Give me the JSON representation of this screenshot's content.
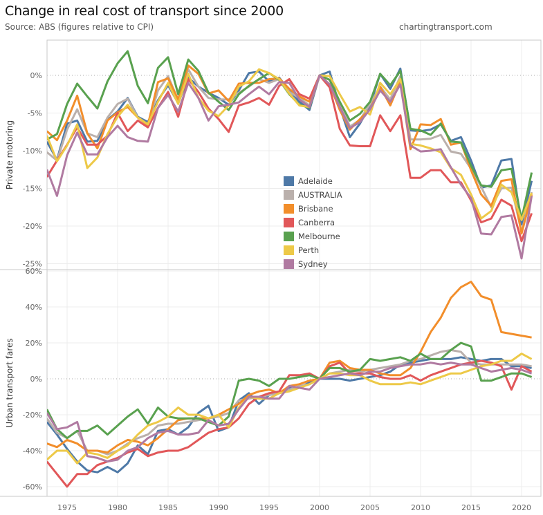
{
  "header": {
    "title": "Change in real cost of transport since 2000",
    "subtitle": "Source: ABS (figures relative to CPI)",
    "site": "chartingtransport.com"
  },
  "legend": [
    {
      "name": "Adelaide",
      "color": "#4e79a7"
    },
    {
      "name": "AUSTRALIA",
      "color": "#bab0ac"
    },
    {
      "name": "Brisbane",
      "color": "#f28e2b"
    },
    {
      "name": "Canberra",
      "color": "#e15759"
    },
    {
      "name": "Melbourne",
      "color": "#59a14f"
    },
    {
      "name": "Perth",
      "color": "#edc948"
    },
    {
      "name": "Sydney",
      "color": "#b07aa1"
    }
  ],
  "chart_data": [
    {
      "type": "line",
      "title": "Private motoring",
      "ylabel": "Private motoring",
      "xlabel": "",
      "ylim": [
        -25.5,
        4.5
      ],
      "yticks": [
        0,
        -5,
        -10,
        -15,
        -20,
        -25
      ],
      "ytick_labels": [
        "0%",
        "-5%",
        "-10%",
        "-15%",
        "-20%",
        "-25%"
      ],
      "x": [
        1973,
        1974,
        1975,
        1976,
        1977,
        1978,
        1979,
        1980,
        1981,
        1982,
        1983,
        1984,
        1985,
        1986,
        1987,
        1988,
        1989,
        1990,
        1991,
        1992,
        1993,
        1994,
        1995,
        1996,
        1997,
        1998,
        1999,
        2000,
        2001,
        2002,
        2003,
        2004,
        2005,
        2006,
        2007,
        2008,
        2009,
        2010,
        2011,
        2012,
        2013,
        2014,
        2015,
        2016,
        2017,
        2018,
        2019,
        2020,
        2021
      ],
      "series": [
        {
          "name": "Adelaide",
          "values": [
            -8.8,
            -11.2,
            -6.4,
            -6.0,
            -8.8,
            -8.7,
            -5.9,
            -4.8,
            -3.0,
            -5.5,
            -6.2,
            -3.3,
            -1.3,
            -3.7,
            -0.3,
            -1.5,
            -2.3,
            -3.0,
            -3.9,
            -2.0,
            0.3,
            0.5,
            -0.8,
            -0.3,
            -2.0,
            -3.5,
            -4.6,
            -0.0,
            0.5,
            -4.2,
            -8.2,
            -6.4,
            -4.0,
            0.2,
            -1.8,
            0.9,
            -7.3,
            -7.4,
            -7.2,
            -6.5,
            -8.7,
            -8.2,
            -11.3,
            -14.9,
            -14.6,
            -11.3,
            -11.1,
            -19.8,
            -14.0
          ]
        },
        {
          "name": "AUSTRALIA",
          "values": [
            -10.2,
            -11.3,
            -7.2,
            -4.5,
            -7.7,
            -8.2,
            -5.6,
            -3.8,
            -3.1,
            -5.6,
            -6.5,
            -2.0,
            -0.1,
            -3.3,
            0.8,
            -1.5,
            -3.0,
            -3.2,
            -3.2,
            -2.3,
            -1.5,
            -0.5,
            -1.0,
            -0.5,
            -2.2,
            -3.0,
            -4.0,
            0.0,
            -0.6,
            -3.5,
            -6.8,
            -5.9,
            -3.8,
            -1.5,
            -3.2,
            -0.1,
            -8.5,
            -8.5,
            -8.4,
            -7.9,
            -10.1,
            -10.4,
            -12.4,
            -14.8,
            -17.5,
            -15.0,
            -14.9,
            -20.8,
            -15.5
          ]
        },
        {
          "name": "Brisbane",
          "values": [
            -7.4,
            -8.6,
            -6.0,
            -2.7,
            -7.7,
            -9.7,
            -6.0,
            -4.9,
            -4.2,
            -5.6,
            -6.6,
            -0.9,
            -0.4,
            -3.2,
            1.3,
            0.2,
            -2.4,
            -2.0,
            -3.4,
            -1.1,
            -1.0,
            -1.0,
            -0.5,
            -0.4,
            -1.8,
            -2.8,
            -3.5,
            0.0,
            -1.2,
            -4.6,
            -7.2,
            -5.8,
            -4.5,
            -1.5,
            -4.0,
            -0.8,
            -9.8,
            -6.5,
            -6.6,
            -5.8,
            -9.2,
            -8.9,
            -12.6,
            -15.8,
            -17.3,
            -14.0,
            -13.8,
            -21.0,
            -15.8
          ]
        },
        {
          "name": "Canberra",
          "values": [
            -13.5,
            -11.3,
            -9.2,
            -6.9,
            -9.2,
            -9.2,
            -8.0,
            -5.0,
            -7.4,
            -6.0,
            -6.9,
            -4.3,
            -2.2,
            -5.5,
            -0.5,
            -2.2,
            -4.4,
            -5.8,
            -7.5,
            -4.0,
            -3.6,
            -3.0,
            -3.9,
            -1.4,
            -0.5,
            -2.5,
            -3.1,
            0.0,
            -1.6,
            -7.1,
            -9.3,
            -9.4,
            -9.4,
            -5.3,
            -7.4,
            -5.3,
            -13.6,
            -13.6,
            -12.6,
            -12.6,
            -14.2,
            -14.2,
            -16.6,
            -19.5,
            -19.0,
            -16.5,
            -17.3,
            -22.0,
            -18.3
          ]
        },
        {
          "name": "Melbourne",
          "values": [
            -8.5,
            -7.8,
            -3.8,
            -1.1,
            -2.8,
            -4.4,
            -0.8,
            1.6,
            3.2,
            -1.4,
            -3.7,
            1.0,
            2.4,
            -2.5,
            2.1,
            0.6,
            -2.3,
            -3.5,
            -4.6,
            -2.5,
            -1.4,
            -0.5,
            0.3,
            -0.6,
            -2.5,
            -3.9,
            -4.3,
            0.0,
            -0.6,
            -3.5,
            -6.0,
            -5.1,
            -3.5,
            0.2,
            -1.3,
            0.6,
            -7.1,
            -7.3,
            -7.9,
            -6.4,
            -8.8,
            -8.9,
            -12.0,
            -14.6,
            -14.8,
            -12.6,
            -12.4,
            -19.1,
            -12.9
          ]
        },
        {
          "name": "Perth",
          "values": [
            -8.0,
            -11.4,
            -9.3,
            -6.5,
            -12.3,
            -10.9,
            -7.8,
            -5.5,
            -3.9,
            -5.6,
            -6.5,
            -3.5,
            -1.0,
            -3.8,
            0.2,
            -3.0,
            -4.7,
            -5.4,
            -4.0,
            -1.5,
            -0.8,
            0.8,
            0.3,
            -0.5,
            -2.4,
            -4.0,
            -4.2,
            0.0,
            -0.1,
            -2.5,
            -4.8,
            -4.2,
            -5.2,
            -1.0,
            -2.5,
            -0.5,
            -9.1,
            -9.3,
            -9.7,
            -10.2,
            -12.3,
            -13.2,
            -15.8,
            -19.0,
            -18.0,
            -14.5,
            -15.5,
            -19.2,
            -15.6
          ]
        },
        {
          "name": "Sydney",
          "values": [
            -12.5,
            -16.0,
            -10.6,
            -7.6,
            -10.5,
            -10.5,
            -8.2,
            -6.7,
            -8.2,
            -8.7,
            -8.8,
            -4.3,
            -2.6,
            -4.8,
            -1.0,
            -3.0,
            -6.0,
            -4.1,
            -3.9,
            -3.6,
            -2.5,
            -1.5,
            -2.5,
            -0.9,
            -1.0,
            -3.2,
            -4.2,
            0.0,
            -1.2,
            -4.2,
            -7.0,
            -6.2,
            -4.5,
            -2.0,
            -3.5,
            -1.2,
            -9.3,
            -10.1,
            -10.0,
            -9.8,
            -12.2,
            -14.5,
            -16.3,
            -21.0,
            -21.1,
            -18.8,
            -18.6,
            -24.3,
            -16.0
          ]
        }
      ]
    },
    {
      "type": "line",
      "title": "Urban transport fares",
      "ylabel": "Urban transport fares",
      "xlabel": "",
      "ylim": [
        -63,
        62
      ],
      "yticks": [
        60,
        40,
        20,
        0,
        -20,
        -40,
        -60
      ],
      "ytick_labels": [
        "60%",
        "40%",
        "20%",
        "0%",
        "-20%",
        "-40%",
        "-60%"
      ],
      "xticks": [
        1975,
        1980,
        1985,
        1990,
        1995,
        2000,
        2005,
        2010,
        2015,
        2020
      ],
      "x": [
        1973,
        1974,
        1975,
        1976,
        1977,
        1978,
        1979,
        1980,
        1981,
        1982,
        1983,
        1984,
        1985,
        1986,
        1987,
        1988,
        1989,
        1990,
        1991,
        1992,
        1993,
        1994,
        1995,
        1996,
        1997,
        1998,
        1999,
        2000,
        2001,
        2002,
        2003,
        2004,
        2005,
        2006,
        2007,
        2008,
        2009,
        2010,
        2011,
        2012,
        2013,
        2014,
        2015,
        2016,
        2017,
        2018,
        2019,
        2020,
        2021
      ],
      "series": [
        {
          "name": "Adelaide",
          "values": [
            -24,
            -31,
            -39,
            -46,
            -51,
            -52,
            -49,
            -52,
            -47,
            -37,
            -42,
            -29,
            -28,
            -31,
            -27,
            -19,
            -15,
            -29,
            -27,
            -12,
            -8,
            -14,
            -9,
            -8,
            -5,
            -5,
            -2,
            0,
            0,
            0,
            -1,
            0,
            1,
            2,
            4,
            8,
            9,
            10,
            11,
            11,
            11,
            12,
            11,
            10,
            11,
            11,
            7,
            7,
            6
          ]
        },
        {
          "name": "AUSTRALIA",
          "values": [
            -22,
            -30,
            -33,
            -29,
            -40,
            -40,
            -42,
            -40,
            -36,
            -33,
            -31,
            -26,
            -25,
            -25,
            -24,
            -23,
            -22,
            -21,
            -19,
            -12,
            -11,
            -10,
            -9,
            -8,
            -6,
            -4,
            -3,
            0,
            3,
            4,
            5,
            4,
            5,
            6,
            7,
            8,
            10,
            11,
            13,
            15,
            16,
            15,
            9,
            8,
            8,
            8,
            8,
            8,
            7
          ]
        },
        {
          "name": "Brisbane",
          "values": [
            -36,
            -38,
            -34,
            -36,
            -40,
            -40,
            -41,
            -37,
            -34,
            -35,
            -37,
            -33,
            -28,
            -23,
            -22,
            -22,
            -22,
            -20,
            -17,
            -14,
            -9,
            -7,
            -6,
            -8,
            -4,
            -3,
            -1,
            0,
            9,
            10,
            6,
            5,
            5,
            3,
            2,
            2,
            6,
            15,
            26,
            34,
            45,
            51,
            54,
            46,
            44,
            26,
            25,
            24,
            23
          ]
        },
        {
          "name": "Canberra",
          "values": [
            -46,
            -53,
            -60,
            -53,
            -53,
            -48,
            -46,
            -44,
            -41,
            -39,
            -43,
            -41,
            -40,
            -40,
            -38,
            -34,
            -30,
            -28,
            -27,
            -22,
            -14,
            -10,
            -8,
            -7,
            2,
            2,
            3,
            0,
            7,
            9,
            3,
            3,
            3,
            1,
            0,
            0,
            2,
            -1,
            2,
            4,
            6,
            8,
            9,
            10,
            9,
            7,
            -6,
            7,
            4
          ]
        },
        {
          "name": "Melbourne",
          "values": [
            -17,
            -28,
            -33,
            -29,
            -29,
            -26,
            -31,
            -26,
            -21,
            -17,
            -25,
            -16,
            -21,
            -22,
            -22,
            -22,
            -24,
            -26,
            -21,
            -1,
            0,
            -1,
            -4,
            0,
            0,
            1,
            2,
            0,
            6,
            6,
            4,
            5,
            11,
            10,
            11,
            12,
            10,
            14,
            11,
            11,
            16,
            20,
            18,
            -1,
            -1,
            1,
            3,
            3,
            1
          ]
        },
        {
          "name": "Perth",
          "values": [
            -45,
            -40,
            -40,
            -47,
            -41,
            -42,
            -44,
            -40,
            -37,
            -31,
            -26,
            -24,
            -21,
            -16,
            -20,
            -20,
            -22,
            -20,
            -27,
            -16,
            -10,
            -11,
            -11,
            -8,
            -7,
            -5,
            -3,
            0,
            3,
            3,
            2,
            2,
            -1,
            -3,
            -3,
            -3,
            -2,
            -3,
            -1,
            1,
            3,
            3,
            5,
            7,
            8,
            10,
            10,
            14,
            11
          ]
        },
        {
          "name": "Sydney",
          "values": [
            -19,
            -28,
            -27,
            -24,
            -43,
            -44,
            -46,
            -45,
            -40,
            -38,
            -33,
            -30,
            -29,
            -31,
            -31,
            -30,
            -23,
            -26,
            -25,
            -17,
            -10,
            -10,
            -11,
            -11,
            -4,
            -5,
            -6,
            0,
            1,
            2,
            3,
            2,
            4,
            4,
            6,
            7,
            8,
            8,
            9,
            8,
            9,
            8,
            8,
            6,
            4,
            5,
            6,
            5,
            3
          ]
        }
      ]
    }
  ]
}
